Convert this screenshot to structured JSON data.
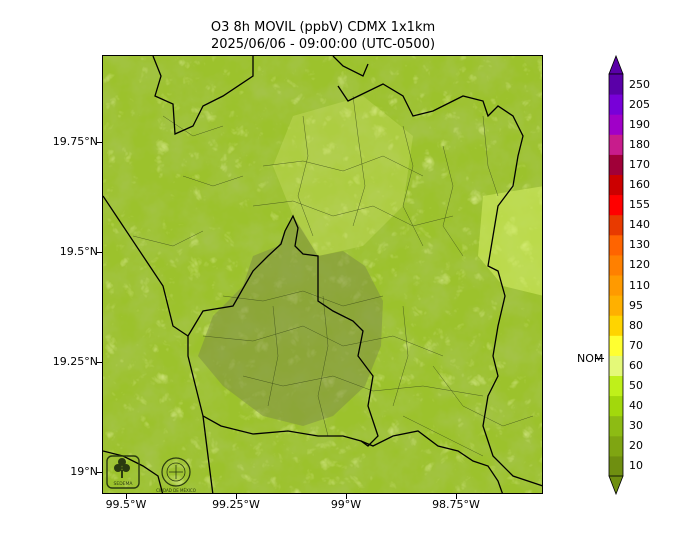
{
  "title": {
    "line1": "O3 8h MOVIL (ppbV) CDMX 1x1km",
    "line2": "2025/06/06 - 09:00:00 (UTC-0500)"
  },
  "axes": {
    "y_labels": [
      "19.75°N",
      "19.5°N",
      "19.25°N",
      "19°N"
    ],
    "x_labels": [
      "99.5°W",
      "99.25°W",
      "99°W",
      "98.75°W"
    ]
  },
  "colorbar": {
    "levels": [
      "10",
      "20",
      "30",
      "40",
      "50",
      "60",
      "70",
      "80",
      "95",
      "110",
      "120",
      "130",
      "140",
      "155",
      "160",
      "170",
      "180",
      "190",
      "205",
      "250"
    ],
    "colors": [
      "#6f8f10",
      "#7fa512",
      "#8dbb14",
      "#a2d80c",
      "#bff01a",
      "#e4f978",
      "#ffff30",
      "#ffd400",
      "#ffb000",
      "#ff9a00",
      "#ff8000",
      "#ff6400",
      "#e83a00",
      "#ff0000",
      "#cc0000",
      "#a00038",
      "#c81c8c",
      "#a000c8",
      "#7800d8",
      "#5a00a8"
    ],
    "marker_label": "NOM",
    "marker_value": 60
  },
  "logos": {
    "left": "SEDEMA",
    "right": "CIUDAD DE MÉXICO"
  },
  "map_colors": {
    "base": "#9cc22c",
    "light": "#c6e35a",
    "dark": "#6f8f1c",
    "urban": "#8a9a44"
  }
}
